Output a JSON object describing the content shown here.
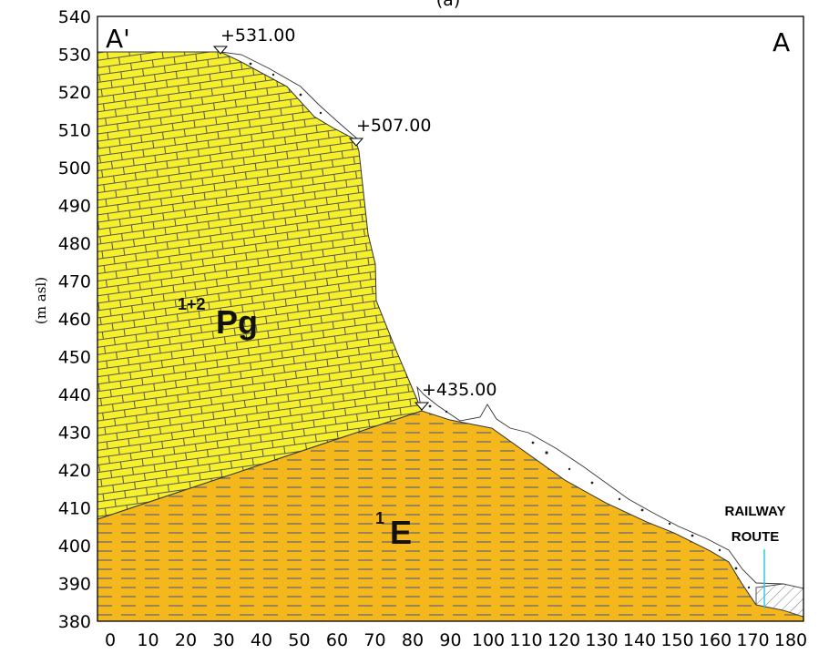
{
  "figure": {
    "panel_label": "(a)",
    "y_axis_label": "(m asl)",
    "section_start_label": "A'",
    "section_end_label": "A",
    "y_ticks": [
      380,
      390,
      400,
      410,
      420,
      430,
      440,
      450,
      460,
      470,
      480,
      490,
      500,
      510,
      520,
      530,
      540
    ],
    "x_ticks": [
      0,
      10,
      20,
      30,
      40,
      50,
      60,
      70,
      80,
      90,
      100,
      110,
      120,
      130,
      140,
      150,
      160,
      170,
      180
    ],
    "elevation_marks": [
      "+531.00",
      "+507.00",
      "+435.00"
    ],
    "units": [
      {
        "superscript": "1+2",
        "symbol": "Pg",
        "color": "#f6ef2b",
        "pattern": "brick"
      },
      {
        "superscript": "1",
        "symbol": "E",
        "color": "#f4b81c",
        "pattern": "dashed"
      }
    ],
    "railway_label_line1": "RAILWAY",
    "railway_label_line2": "ROUTE",
    "railway_color": "#2ec8e6"
  }
}
